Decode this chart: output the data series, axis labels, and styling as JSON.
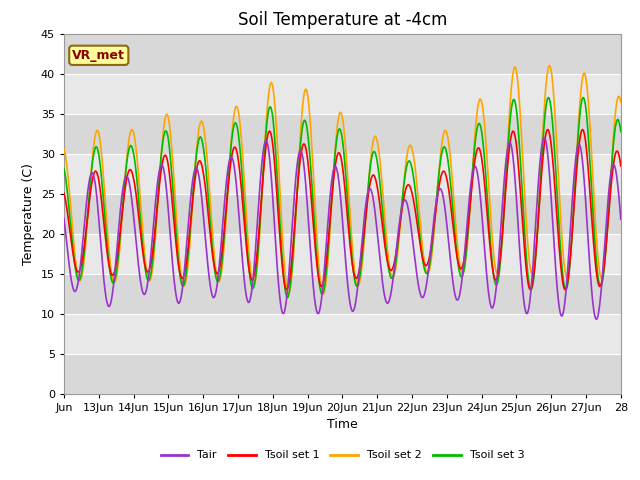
{
  "title": "Soil Temperature at -4cm",
  "xlabel": "Time",
  "ylabel": "Temperature (C)",
  "ylim": [
    0,
    45
  ],
  "yticks": [
    0,
    5,
    10,
    15,
    20,
    25,
    30,
    35,
    40,
    45
  ],
  "x_tick_labels": [
    "Jun",
    "13Jun",
    "14Jun",
    "15Jun",
    "16Jun",
    "17Jun",
    "18Jun",
    "19Jun",
    "20Jun",
    "21Jun",
    "22Jun",
    "23Jun",
    "24Jun",
    "25Jun",
    "26Jun",
    "27Jun",
    "28"
  ],
  "x_tick_positions": [
    0,
    1,
    2,
    3,
    4,
    5,
    6,
    7,
    8,
    9,
    10,
    11,
    12,
    13,
    14,
    15,
    16
  ],
  "annotation_text": "VR_met",
  "annotation_color": "#8B0000",
  "annotation_bg": "#FFFF99",
  "series": {
    "Tair": {
      "color": "#9933CC",
      "lw": 1.2
    },
    "Tsoil set 1": {
      "color": "#FF0000",
      "lw": 1.2
    },
    "Tsoil set 2": {
      "color": "#FFA500",
      "lw": 1.2
    },
    "Tsoil set 3": {
      "color": "#00BB00",
      "lw": 1.2
    }
  },
  "band_colors": [
    "#D8D8D8",
    "#E8E8E8"
  ],
  "grid_color": "#FFFFFF",
  "title_fontsize": 12,
  "axis_fontsize": 9,
  "tick_fontsize": 8
}
